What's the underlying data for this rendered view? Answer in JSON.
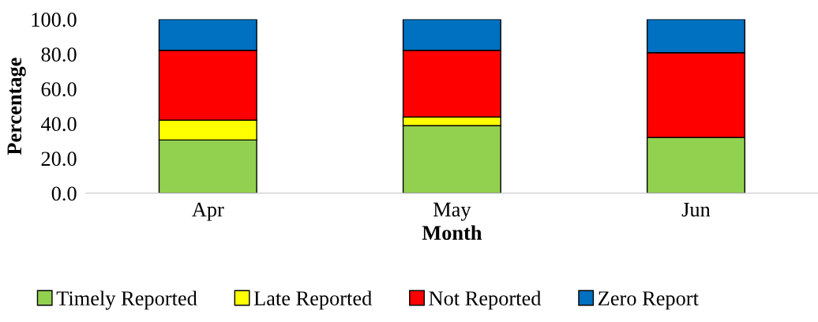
{
  "chart_data": {
    "type": "bar",
    "stacked": true,
    "xlabel": "Month",
    "ylabel": "Percentage",
    "categories": [
      "Apr",
      "May",
      "Jun"
    ],
    "series": [
      {
        "name": "Timely Reported",
        "color": "#92d050",
        "values": [
          30.6,
          38.8,
          32.0
        ]
      },
      {
        "name": "Late Reported",
        "color": "#ffff00",
        "values": [
          11.4,
          5.0,
          0
        ]
      },
      {
        "name": "Not Reported",
        "color": "#ff0000",
        "values": [
          40.2,
          38.4,
          48.8
        ]
      },
      {
        "name": "Zero Report",
        "color": "#0070c0",
        "values": [
          17.8,
          17.8,
          19.2
        ]
      }
    ],
    "ylim": [
      0,
      100
    ],
    "yticks": [
      {
        "value": 0,
        "label": "0.0"
      },
      {
        "value": 20,
        "label": "20.0"
      },
      {
        "value": 40,
        "label": "40.0"
      },
      {
        "value": 60,
        "label": "60.0"
      },
      {
        "value": 80,
        "label": "80.0"
      },
      {
        "value": 100,
        "label": "100.0"
      }
    ],
    "grid": false,
    "legend": "bottom"
  }
}
